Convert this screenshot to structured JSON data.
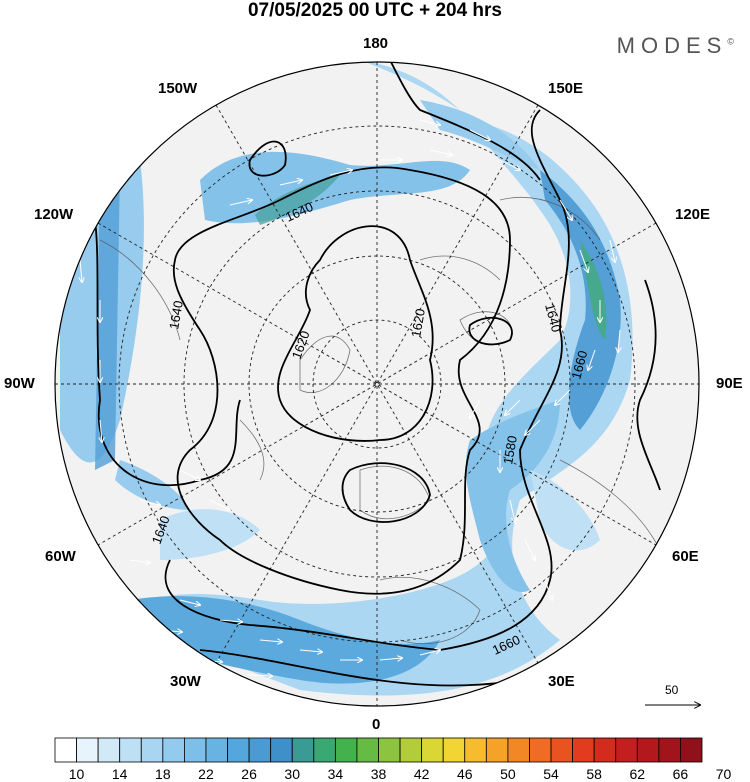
{
  "title": "07/05/2025  00 UTC  + 204 hrs",
  "brand": "MODES",
  "brand_mark": "©",
  "longitude_labels": {
    "top": "180",
    "bottom": "0",
    "left": "90W",
    "right": "90E",
    "upper_left": "150W",
    "upper_right": "150E",
    "mid_left_upper": "120W",
    "mid_right_upper": "120E",
    "mid_left_lower": "60W",
    "mid_right_lower": "60E",
    "lower_left": "30W",
    "lower_right": "30E"
  },
  "contour_labels": [
    "1640",
    "1620",
    "1620",
    "1640",
    "1640",
    "1640",
    "1660",
    "1580",
    "1660"
  ],
  "reference_vector": {
    "value": "50"
  },
  "colorbar": {
    "labels": [
      "10",
      "14",
      "18",
      "22",
      "26",
      "30",
      "34",
      "38",
      "42",
      "46",
      "50",
      "54",
      "58",
      "62",
      "66",
      "70"
    ],
    "colors": [
      "#ffffff",
      "#e8f4fb",
      "#d2eaf8",
      "#bde0f5",
      "#a8d5f2",
      "#93caee",
      "#7ebfe9",
      "#69b3e3",
      "#54a6dc",
      "#4a9ad4",
      "#3f8fc9",
      "#3a9a94",
      "#3aa873",
      "#43b14c",
      "#66bb45",
      "#8cc43f",
      "#b3cd3a",
      "#d9d636",
      "#f2d532",
      "#f5bd2d",
      "#f5a229",
      "#f28726",
      "#ee6c23",
      "#e95321",
      "#e23b1f",
      "#d52a1e",
      "#c41f1e",
      "#b3181d",
      "#a2141c",
      "#91111b"
    ]
  }
}
